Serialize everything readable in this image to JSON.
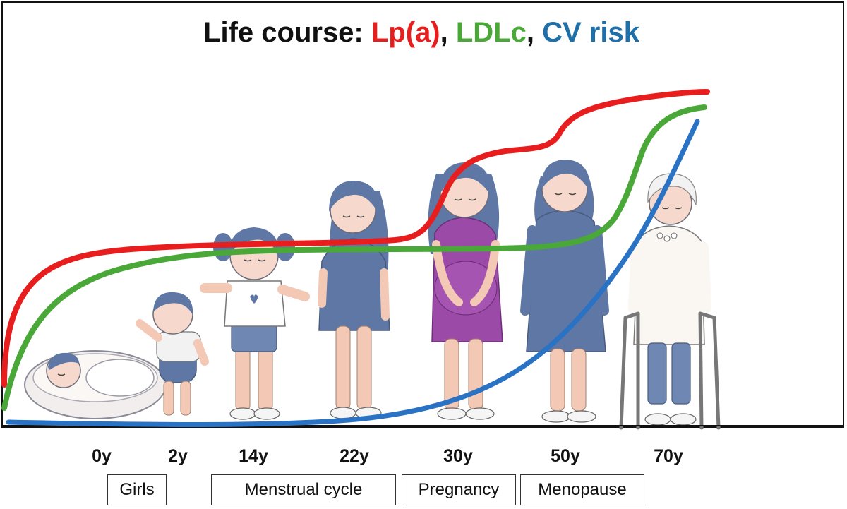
{
  "title": {
    "lead": "Life course: ",
    "lpa": "Lp(a)",
    "sep1": ", ",
    "ldlc": "LDLc",
    "sep2": ", ",
    "cv": "CV risk"
  },
  "colors": {
    "lpa": "#e81e1e",
    "ldlc": "#4aa838",
    "cv": "#2a72c4",
    "cv_title": "#1f6fa8"
  },
  "ages": [
    "0y",
    "2y",
    "14y",
    "22y",
    "30y",
    "50y",
    "70y"
  ],
  "phases": [
    "Girls",
    "Menstrual cycle",
    "Pregnancy",
    "Menopause"
  ],
  "figures": [
    {
      "stage": "infant-in-basket"
    },
    {
      "stage": "toddler"
    },
    {
      "stage": "girl"
    },
    {
      "stage": "young-woman"
    },
    {
      "stage": "pregnant-woman"
    },
    {
      "stage": "middle-aged-woman"
    },
    {
      "stage": "elderly-woman-with-walker"
    }
  ]
}
